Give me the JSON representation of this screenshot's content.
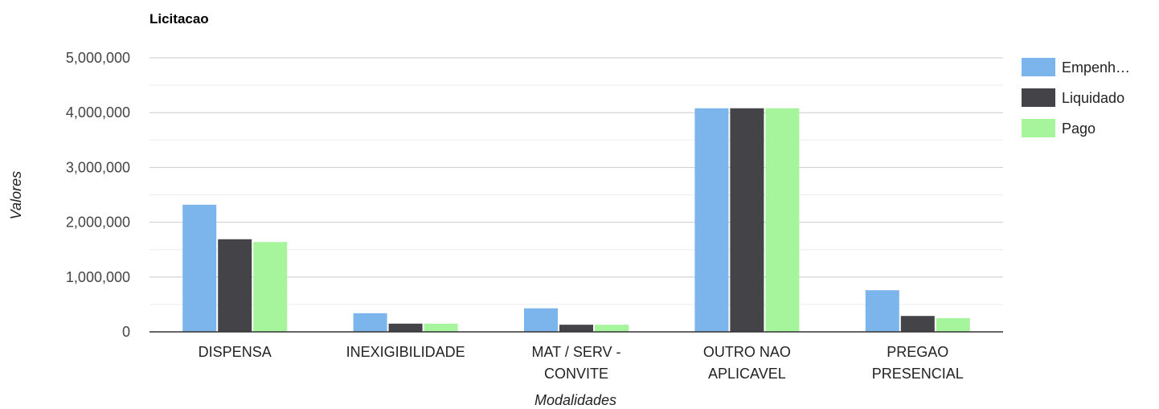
{
  "chart_data": {
    "type": "bar",
    "title": "Licitacao",
    "xlabel": "Modalidades",
    "ylabel": "Valores",
    "ylim": [
      0,
      5000000
    ],
    "yticks": [
      0,
      1000000,
      2000000,
      3000000,
      4000000,
      5000000
    ],
    "ytick_labels": [
      "0",
      "1,000,000",
      "2,000,000",
      "3,000,000",
      "4,000,000",
      "5,000,000"
    ],
    "minor_grid": true,
    "legend_position": "right",
    "categories": [
      [
        "DISPENSA"
      ],
      [
        "INEXIGIBILIDADE"
      ],
      [
        "MAT / SERV -",
        "CONVITE"
      ],
      [
        "OUTRO NAO",
        "APLICAVEL"
      ],
      [
        "PREGAO",
        "PRESENCIAL"
      ]
    ],
    "series": [
      {
        "name": "Empenh…",
        "color": "#7cb5ec",
        "values": [
          2320000,
          340000,
          430000,
          4080000,
          760000
        ]
      },
      {
        "name": "Liquidado",
        "color": "#434348",
        "values": [
          1690000,
          150000,
          130000,
          4080000,
          290000
        ]
      },
      {
        "name": "Pago",
        "color": "#a6f59c",
        "values": [
          1640000,
          150000,
          130000,
          4080000,
          250000
        ]
      }
    ]
  }
}
